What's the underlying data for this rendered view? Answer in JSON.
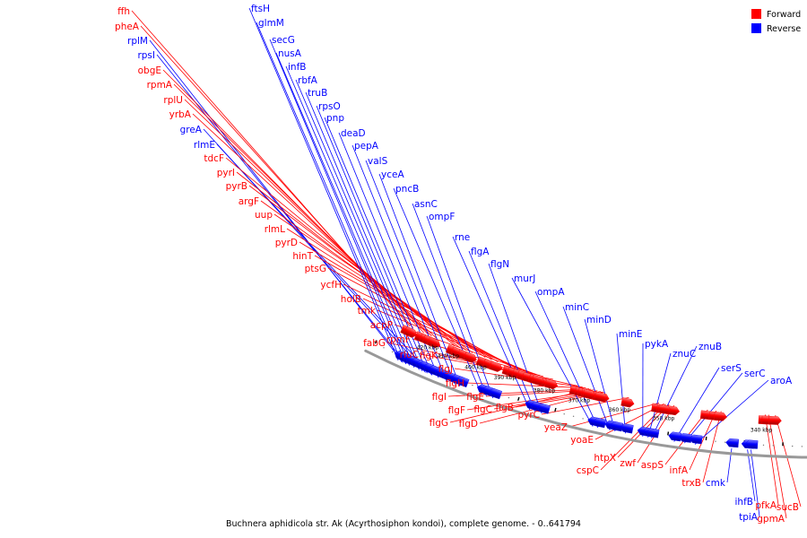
{
  "colors": {
    "forward": "#ff0000",
    "reverse": "#0000ff",
    "backbone": "#999999"
  },
  "legend": {
    "forward": "Forward",
    "reverse": "Reverse"
  },
  "caption": "Buchnera aphidicola str. Ak (Acyrthosiphon kondoi), complete genome. - 0..641794",
  "kbp_marks": [
    "420 kbp",
    "410 kbp",
    "400 kbp",
    "390 kbp",
    "380 kbp",
    "370 kbp",
    "360 kbp",
    "350 kbp",
    "340 kbp"
  ],
  "genes": [
    {
      "name": "ffh",
      "strand": "forward"
    },
    {
      "name": "pheA",
      "strand": "forward"
    },
    {
      "name": "rplM",
      "strand": "reverse"
    },
    {
      "name": "rpsI",
      "strand": "reverse"
    },
    {
      "name": "obgE",
      "strand": "forward"
    },
    {
      "name": "rpmA",
      "strand": "forward"
    },
    {
      "name": "rplU",
      "strand": "forward"
    },
    {
      "name": "yrbA",
      "strand": "forward"
    },
    {
      "name": "greA",
      "strand": "reverse"
    },
    {
      "name": "rlmE",
      "strand": "reverse"
    },
    {
      "name": "tdcF",
      "strand": "forward"
    },
    {
      "name": "pyrI",
      "strand": "forward"
    },
    {
      "name": "pyrB",
      "strand": "forward"
    },
    {
      "name": "argF",
      "strand": "forward"
    },
    {
      "name": "uup",
      "strand": "forward"
    },
    {
      "name": "rlmL",
      "strand": "forward"
    },
    {
      "name": "pyrD",
      "strand": "forward"
    },
    {
      "name": "hinT",
      "strand": "forward"
    },
    {
      "name": "ptsG",
      "strand": "forward"
    },
    {
      "name": "ycfH",
      "strand": "forward"
    },
    {
      "name": "holB",
      "strand": "forward"
    },
    {
      "name": "tmk",
      "strand": "forward"
    },
    {
      "name": "acpP",
      "strand": "forward"
    },
    {
      "name": "rpmF",
      "strand": "forward"
    },
    {
      "name": "fabG",
      "strand": "forward"
    },
    {
      "name": "rluC",
      "strand": "forward"
    },
    {
      "name": "flgK",
      "strand": "forward"
    },
    {
      "name": "flgJ",
      "strand": "forward"
    },
    {
      "name": "flgH",
      "strand": "forward"
    },
    {
      "name": "flgI",
      "strand": "forward"
    },
    {
      "name": "flgE",
      "strand": "forward"
    },
    {
      "name": "flgF",
      "strand": "forward"
    },
    {
      "name": "flgC",
      "strand": "forward"
    },
    {
      "name": "flgB",
      "strand": "forward"
    },
    {
      "name": "flgG",
      "strand": "forward"
    },
    {
      "name": "flgD",
      "strand": "forward"
    },
    {
      "name": "pyrC",
      "strand": "forward"
    },
    {
      "name": "yeaZ",
      "strand": "forward"
    },
    {
      "name": "yoaE",
      "strand": "forward"
    },
    {
      "name": "htpX",
      "strand": "forward"
    },
    {
      "name": "zwf",
      "strand": "forward"
    },
    {
      "name": "cspC",
      "strand": "forward"
    },
    {
      "name": "aspS",
      "strand": "forward"
    },
    {
      "name": "infA",
      "strand": "forward"
    },
    {
      "name": "trxB",
      "strand": "forward"
    },
    {
      "name": "cmk",
      "strand": "reverse"
    },
    {
      "name": "ihfB",
      "strand": "reverse"
    },
    {
      "name": "tpiA",
      "strand": "reverse"
    },
    {
      "name": "pfkA",
      "strand": "forward"
    },
    {
      "name": "gpmA",
      "strand": "forward"
    },
    {
      "name": "sucB",
      "strand": "forward"
    },
    {
      "name": "ftsH",
      "strand": "reverse"
    },
    {
      "name": "glmM",
      "strand": "reverse"
    },
    {
      "name": "secG",
      "strand": "reverse"
    },
    {
      "name": "nusA",
      "strand": "reverse"
    },
    {
      "name": "infB",
      "strand": "reverse"
    },
    {
      "name": "rbfA",
      "strand": "reverse"
    },
    {
      "name": "truB",
      "strand": "reverse"
    },
    {
      "name": "rpsO",
      "strand": "reverse"
    },
    {
      "name": "pnp",
      "strand": "reverse"
    },
    {
      "name": "deaD",
      "strand": "reverse"
    },
    {
      "name": "pepA",
      "strand": "reverse"
    },
    {
      "name": "valS",
      "strand": "reverse"
    },
    {
      "name": "yceA",
      "strand": "reverse"
    },
    {
      "name": "pncB",
      "strand": "reverse"
    },
    {
      "name": "asnC",
      "strand": "reverse"
    },
    {
      "name": "ompF",
      "strand": "reverse"
    },
    {
      "name": "rne",
      "strand": "reverse"
    },
    {
      "name": "flgA",
      "strand": "reverse"
    },
    {
      "name": "flgN",
      "strand": "reverse"
    },
    {
      "name": "murJ",
      "strand": "reverse"
    },
    {
      "name": "ompA",
      "strand": "reverse"
    },
    {
      "name": "minC",
      "strand": "reverse"
    },
    {
      "name": "minD",
      "strand": "reverse"
    },
    {
      "name": "minE",
      "strand": "reverse"
    },
    {
      "name": "pykA",
      "strand": "reverse"
    },
    {
      "name": "znuC",
      "strand": "reverse"
    },
    {
      "name": "znuB",
      "strand": "reverse"
    },
    {
      "name": "serS",
      "strand": "reverse"
    },
    {
      "name": "serC",
      "strand": "reverse"
    },
    {
      "name": "aroA",
      "strand": "reverse"
    }
  ]
}
